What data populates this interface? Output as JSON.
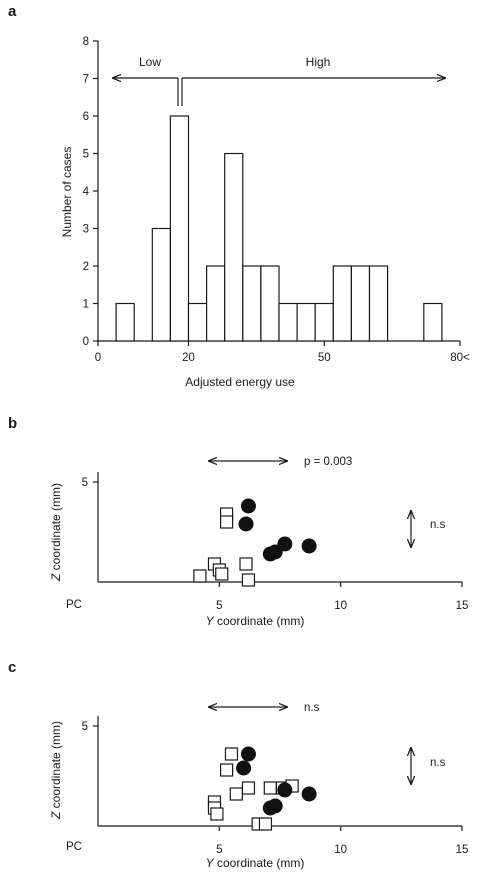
{
  "chart_data": [
    {
      "panel": "a",
      "type": "bar",
      "xlabel": "Adjusted energy use",
      "ylabel": "Number of cases",
      "ylim": [
        0,
        8
      ],
      "xlim": [
        0,
        80
      ],
      "x_ticks": [
        0,
        20,
        50,
        80
      ],
      "x_tick_labels": [
        "0",
        "20",
        "50",
        "80<"
      ],
      "y_ticks": [
        0,
        1,
        2,
        3,
        4,
        5,
        6,
        7,
        8
      ],
      "bin_width": 4,
      "x": [
        6,
        14,
        18,
        22,
        26,
        30,
        34,
        38,
        42,
        46,
        50,
        54,
        58,
        62,
        66,
        74
      ],
      "values": [
        1,
        3,
        6,
        1,
        2,
        5,
        2,
        2,
        1,
        1,
        1,
        2,
        2,
        2,
        0,
        1
      ],
      "annotations": {
        "low": "Low",
        "high": "High"
      },
      "grid": false
    },
    {
      "panel": "b",
      "type": "scatter",
      "xlabel": "Y coordinate (mm)",
      "xlabel_var": "Y",
      "xlabel_rest": " coordinate (mm)",
      "ylabel": "Z coordinate (mm)",
      "ylabel_var": "Z",
      "ylabel_rest": " coordinate (mm)",
      "origin_label": "PC",
      "xlim": [
        0,
        15
      ],
      "ylim": [
        0,
        6
      ],
      "x_ticks": [
        5,
        10,
        15
      ],
      "y_ticks": [
        5
      ],
      "series": [
        {
          "marker": "open-square",
          "x": [
            5.3,
            5.3,
            4.8,
            5.0,
            4.2,
            6.1,
            6.2,
            5.1
          ],
          "y": [
            3.4,
            3.0,
            0.9,
            0.6,
            0.3,
            0.9,
            0.1,
            0.4
          ]
        },
        {
          "marker": "filled-circle",
          "x": [
            6.2,
            6.1,
            7.1,
            7.3,
            7.7,
            8.7
          ],
          "y": [
            3.8,
            2.9,
            1.4,
            1.5,
            1.9,
            1.8
          ]
        }
      ],
      "annotations": {
        "horizontal_test": "p = 0.003",
        "vertical_test": "n.s"
      },
      "grid": false
    },
    {
      "panel": "c",
      "type": "scatter",
      "xlabel": "Y coordinate (mm)",
      "xlabel_var": "Y",
      "xlabel_rest": " coordinate (mm)",
      "ylabel": "Z coordinate (mm)",
      "ylabel_var": "Z",
      "ylabel_rest": " coordinate (mm)",
      "origin_label": "PC",
      "xlim": [
        0,
        15
      ],
      "ylim": [
        0,
        6
      ],
      "x_ticks": [
        5,
        10,
        15
      ],
      "y_ticks": [
        5
      ],
      "series": [
        {
          "marker": "open-square",
          "x": [
            5.5,
            5.3,
            6.2,
            5.7,
            4.8,
            4.8,
            4.9,
            7.1,
            7.6,
            8.0,
            6.6,
            6.9
          ],
          "y": [
            3.6,
            2.8,
            1.9,
            1.6,
            1.2,
            0.9,
            0.6,
            1.9,
            1.9,
            2.0,
            0.1,
            0.1
          ]
        },
        {
          "marker": "filled-circle",
          "x": [
            6.2,
            6.0,
            7.1,
            7.3,
            7.7,
            8.7
          ],
          "y": [
            3.6,
            2.9,
            0.9,
            1.0,
            1.8,
            1.6
          ]
        }
      ],
      "annotations": {
        "horizontal_test": "n.s",
        "vertical_test": "n.s"
      },
      "grid": false
    }
  ],
  "panels": {
    "a": "a",
    "b": "b",
    "c": "c"
  }
}
